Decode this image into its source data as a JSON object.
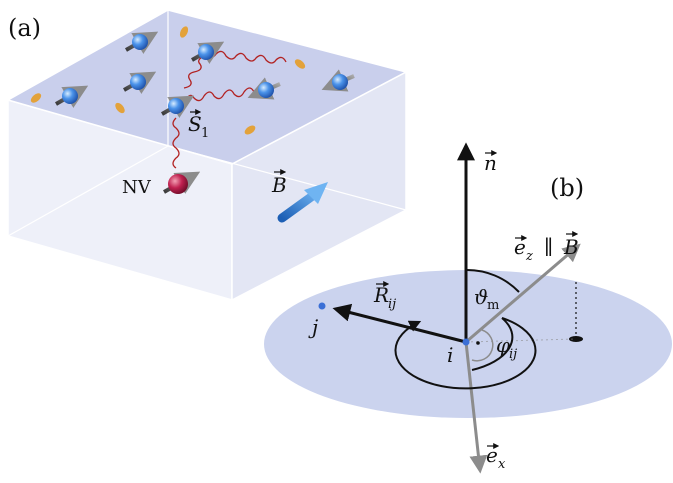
{
  "panel_a": {
    "label": "(a)",
    "nv_label": "NV",
    "spin_symbol": "S",
    "spin_sub": "1",
    "field_symbol": "B",
    "colors": {
      "top_face": "#c9cfec",
      "front_face": "#eef0f9",
      "side_face": "#e3e6f4",
      "edge": "#ffffff",
      "electron": "#3f86e0",
      "nv": "#b01e45",
      "coupling": "#b22222",
      "field_arrow": "#2f7fd6",
      "spin_arrow": "#666666",
      "impurity": "#e3a23a"
    }
  },
  "panel_b": {
    "label": "(b)",
    "n_symbol": "n",
    "ez_symbol": "e",
    "ez_sub": "z",
    "parallel": "∥",
    "b_symbol": "B",
    "r_symbol": "R",
    "r_sub": "ij",
    "j_label": "j",
    "i_label": "i",
    "theta_symbol": "ϑ",
    "theta_sub": "m",
    "phi_symbol": "φ",
    "phi_sub": "ij",
    "ex_symbol": "e",
    "ex_sub": "x",
    "colors": {
      "disk": "#cbd3ee",
      "grey_arrow": "#8c8c8c",
      "black_arrow": "#111111",
      "node": "#3b6fd6"
    }
  }
}
